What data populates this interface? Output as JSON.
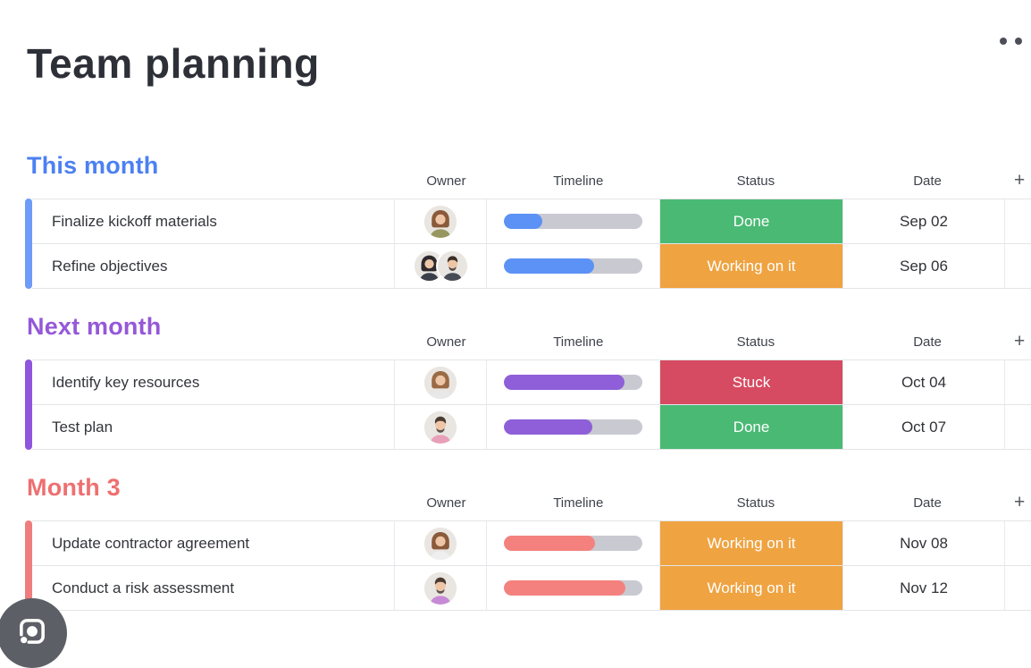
{
  "page": {
    "title": "Team planning",
    "more_menu_icon": "two-dots-ellipsis",
    "lens_icon": "camera-lens"
  },
  "columns": {
    "owner": "Owner",
    "timeline": "Timeline",
    "status": "Status",
    "date": "Date",
    "add": "+"
  },
  "colors": {
    "status": {
      "Done": "#4ab974",
      "Working on it": "#efa341",
      "Stuck": "#d64b61"
    },
    "timeline_track": "#c9cad1"
  },
  "groups": [
    {
      "title": "This month",
      "title_color": "#4c80f2",
      "strip_color": "#6d9bf7",
      "timeline_color": "#5c92f5",
      "rows": [
        {
          "name": "Finalize kickoff materials",
          "timeline_pct": 28,
          "status": "Done",
          "date": "Sep 02",
          "owners": [
            {
              "type": "woman",
              "hair": "#8a5a3b",
              "shirt": "#97975f"
            }
          ]
        },
        {
          "name": "Refine objectives",
          "timeline_pct": 65,
          "status": "Working on it",
          "date": "Sep 06",
          "owners": [
            {
              "type": "woman",
              "hair": "#2e2a2e",
              "shirt": "#3a3f4a"
            },
            {
              "type": "man",
              "hair": "#3a2e26",
              "shirt": "#474c55"
            }
          ]
        }
      ]
    },
    {
      "title": "Next month",
      "title_color": "#9558d8",
      "strip_color": "#8f55dd",
      "timeline_color": "#8e5fd8",
      "rows": [
        {
          "name": "Identify key resources",
          "timeline_pct": 87,
          "status": "Stuck",
          "date": "Oct 04",
          "owners": [
            {
              "type": "woman",
              "hair": "#9a6a45",
              "shirt": "#e8e8e8"
            }
          ]
        },
        {
          "name": "Test plan",
          "timeline_pct": 64,
          "status": "Done",
          "date": "Oct 07",
          "owners": [
            {
              "type": "man",
              "hair": "#4a3a30",
              "shirt": "#e8a0b8"
            }
          ]
        }
      ]
    },
    {
      "title": "Month 3",
      "title_color": "#ee6f70",
      "strip_color": "#f07d7d",
      "timeline_color": "#f4817d",
      "rows": [
        {
          "name": "Update contractor agreement",
          "timeline_pct": 66,
          "status": "Working on it",
          "date": "Nov 08",
          "owners": [
            {
              "type": "woman",
              "hair": "#8a5a3b",
              "shirt": "#efeff0"
            }
          ]
        },
        {
          "name": "Conduct a risk assessment",
          "timeline_pct": 88,
          "status": "Working on it",
          "date": "Nov 12",
          "owners": [
            {
              "type": "man",
              "hair": "#4a3a30",
              "shirt": "#c78ad6"
            }
          ]
        }
      ]
    }
  ]
}
